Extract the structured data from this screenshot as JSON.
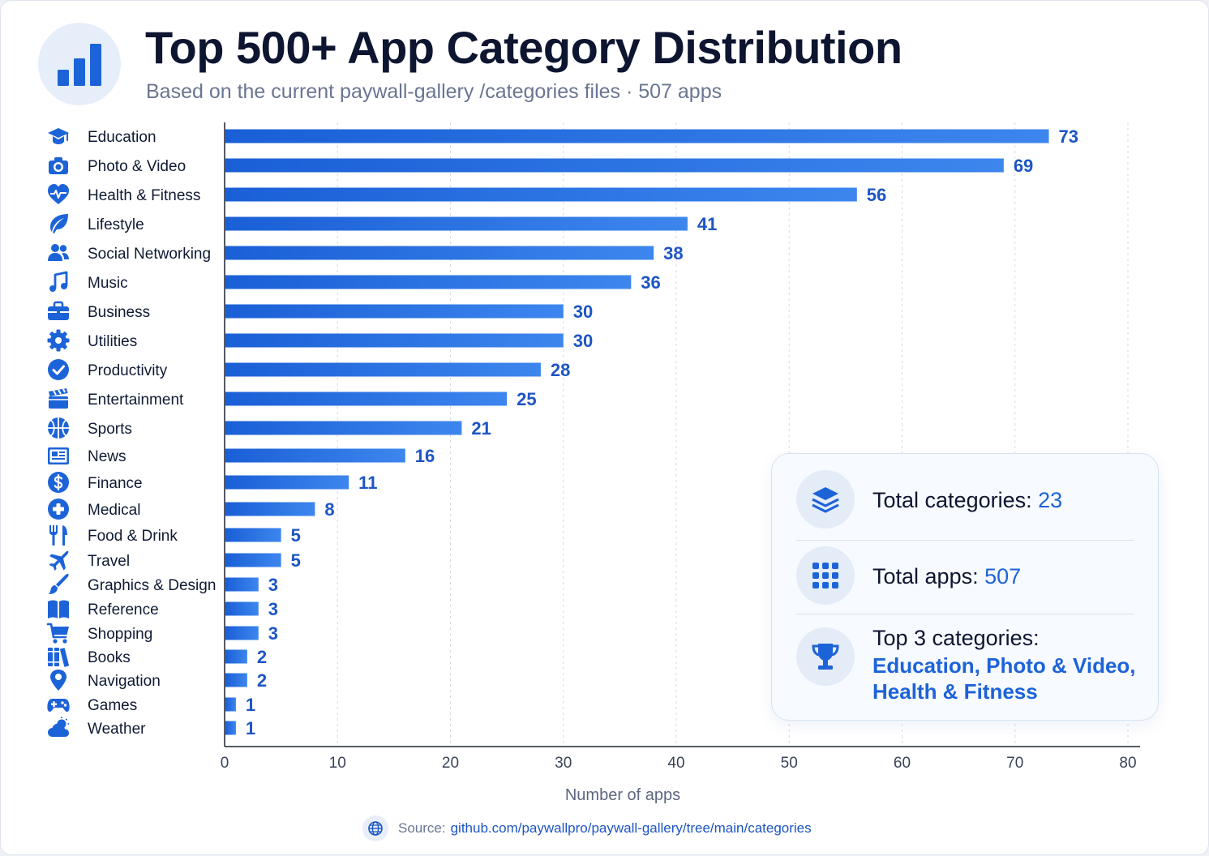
{
  "header": {
    "title": "Top 500+ App Category Distribution",
    "subtitle": "Based on the current paywall-gallery /categories files · 507 apps",
    "logo_icon": "bar-chart-icon"
  },
  "colors": {
    "bar_start": "#1a5fd6",
    "bar_end": "#3d86ee",
    "value_label": "#1d55c4",
    "icon": "#1d63d8",
    "axis": "#1e2433",
    "grid": "#d5dae3"
  },
  "chart_data": {
    "type": "bar",
    "orientation": "horizontal",
    "categories": [
      "Education",
      "Photo & Video",
      "Health & Fitness",
      "Lifestyle",
      "Social Networking",
      "Music",
      "Business",
      "Utilities",
      "Productivity",
      "Entertainment",
      "Sports",
      "News",
      "Finance",
      "Medical",
      "Food & Drink",
      "Travel",
      "Graphics & Design",
      "Reference",
      "Shopping",
      "Books",
      "Navigation",
      "Games",
      "Weather"
    ],
    "category_icons": [
      "graduation-cap-icon",
      "camera-icon",
      "heart-pulse-icon",
      "leaf-icon",
      "users-icon",
      "music-note-icon",
      "briefcase-icon",
      "gear-icon",
      "check-circle-icon",
      "clapperboard-icon",
      "basketball-icon",
      "newspaper-icon",
      "dollar-circle-icon",
      "medical-cross-icon",
      "fork-knife-icon",
      "airplane-icon",
      "paintbrush-icon",
      "open-book-icon",
      "shopping-cart-icon",
      "books-icon",
      "map-pin-icon",
      "gamepad-icon",
      "cloud-sun-icon"
    ],
    "values": [
      73,
      69,
      56,
      41,
      38,
      36,
      30,
      30,
      28,
      25,
      21,
      16,
      11,
      8,
      5,
      5,
      3,
      3,
      3,
      2,
      2,
      1,
      1
    ],
    "xlabel": "Number of apps",
    "xlim": [
      0,
      80
    ],
    "xticks": [
      0,
      10,
      20,
      30,
      40,
      50,
      60,
      70,
      80
    ],
    "grid": "vertical dashed",
    "legend": "none"
  },
  "summary": {
    "categories_label": "Total categories:",
    "categories_value": "23",
    "apps_label": "Total apps:",
    "apps_value": "507",
    "top3_label": "Top 3 categories:",
    "top3_line1": "Education, Photo & Video,",
    "top3_line2": "Health & Fitness",
    "icons": [
      "layers-icon",
      "grid-dots-icon",
      "trophy-icon"
    ]
  },
  "source": {
    "label": "Source:",
    "link": "github.com/paywallpro/paywall-gallery/tree/main/categories",
    "icon": "globe-icon"
  }
}
